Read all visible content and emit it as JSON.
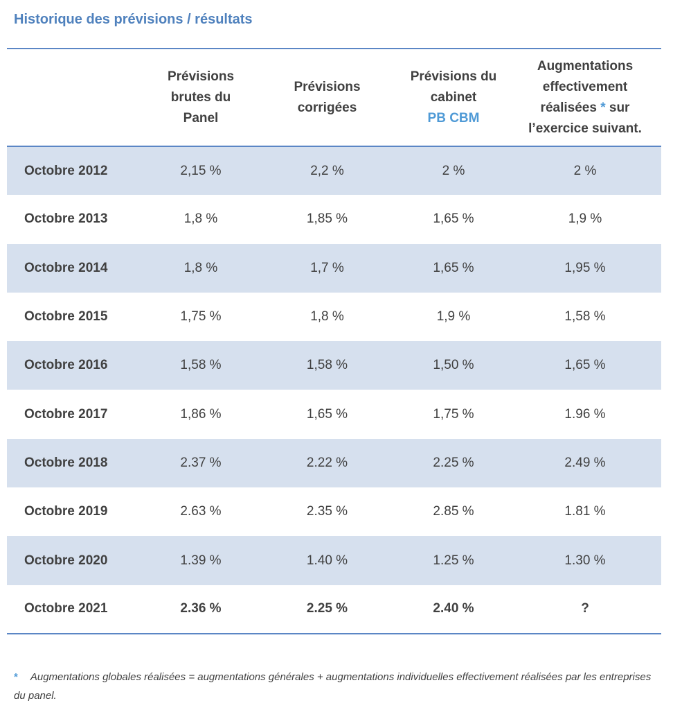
{
  "title": "Historique des prévisions / résultats",
  "headers": {
    "col1": [
      "Prévisions",
      "brutes du",
      "Panel"
    ],
    "col2": [
      "Prévisions",
      "corrigées"
    ],
    "col3": [
      "Prévisions du",
      "cabinet"
    ],
    "col3_accent": "PB CBM",
    "col4_line1": "Augmentations",
    "col4_line2": "effectivement",
    "col4_line3_pre": "réalisées",
    "col4_star": "*",
    "col4_line3_post": "sur",
    "col4_line4": "l’exercice suivant."
  },
  "rows": [
    {
      "label": "Octobre 2012",
      "brutes": "2,15 %",
      "corrigees": "2,2 %",
      "cabinet": "2 %",
      "realisees": "2 %"
    },
    {
      "label": "Octobre 2013",
      "brutes": "1,8 %",
      "corrigees": "1,85 %",
      "cabinet": "1,65 %",
      "realisees": "1,9 %"
    },
    {
      "label": "Octobre 2014",
      "brutes": "1,8 %",
      "corrigees": "1,7 %",
      "cabinet": "1,65 %",
      "realisees": "1,95 %"
    },
    {
      "label": "Octobre 2015",
      "brutes": "1,75 %",
      "corrigees": "1,8 %",
      "cabinet": "1,9 %",
      "realisees": "1,58 %"
    },
    {
      "label": "Octobre 2016",
      "brutes": "1,58 %",
      "corrigees": "1,58 %",
      "cabinet": "1,50 %",
      "realisees": "1,65 %"
    },
    {
      "label": "Octobre 2017",
      "brutes": "1,86 %",
      "corrigees": "1,65 %",
      "cabinet": "1,75 %",
      "realisees": "1.96 %"
    },
    {
      "label": "Octobre 2018",
      "brutes": "2.37 %",
      "corrigees": "2.22 %",
      "cabinet": "2.25 %",
      "realisees": "2.49 %"
    },
    {
      "label": "Octobre 2019",
      "brutes": "2.63 %",
      "corrigees": "2.35 %",
      "cabinet": "2.85 %",
      "realisees": "1.81 %"
    },
    {
      "label": "Octobre 2020",
      "brutes": "1.39 %",
      "corrigees": "1.40 %",
      "cabinet": "1.25 %",
      "realisees": "1.30 %"
    },
    {
      "label": "Octobre 2021",
      "brutes": "2.36 %",
      "corrigees": "2.25 %",
      "cabinet": "2.40 %",
      "realisees": "?"
    }
  ],
  "footnote": {
    "marker": "*",
    "text": "Augmentations globales réalisées = augmentations générales + augmentations individuelles effectivement réalisées par les entreprises du panel."
  },
  "colors": {
    "title": "#4f81bd",
    "accent": "#4f9ad6",
    "rule": "#5b86c5",
    "shade": "#d6e0ee",
    "text": "#404040"
  }
}
